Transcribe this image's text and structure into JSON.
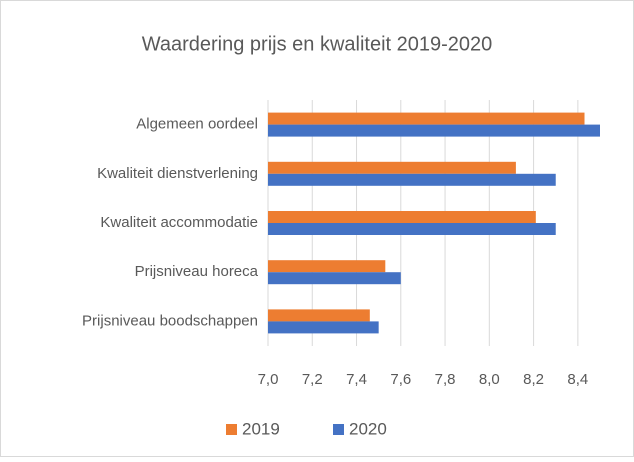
{
  "chart_data": {
    "type": "bar",
    "orientation": "horizontal",
    "title": "Waardering prijs en kwaliteit 2019-2020",
    "categories": [
      "Algemeen oordeel",
      "Kwaliteit dienstverlening",
      "Kwaliteit accommodatie",
      "Prijsniveau horeca",
      "Prijsniveau boodschappen"
    ],
    "series": [
      {
        "name": "2019",
        "color": "#ed7d31",
        "values": [
          8.43,
          8.12,
          8.21,
          7.53,
          7.46
        ]
      },
      {
        "name": "2020",
        "color": "#4472c4",
        "values": [
          8.5,
          8.3,
          8.3,
          7.6,
          7.5
        ]
      }
    ],
    "xlim": [
      7.0,
      8.5
    ],
    "xticks": [
      {
        "value": 7.0,
        "label": "7,0"
      },
      {
        "value": 7.2,
        "label": "7,2"
      },
      {
        "value": 7.4,
        "label": "7,4"
      },
      {
        "value": 7.6,
        "label": "7,6"
      },
      {
        "value": 7.8,
        "label": "7,8"
      },
      {
        "value": 8.0,
        "label": "8,0"
      },
      {
        "value": 8.2,
        "label": "8,2"
      },
      {
        "value": 8.4,
        "label": "8,4"
      }
    ],
    "grid": true,
    "legend": "bottom"
  }
}
